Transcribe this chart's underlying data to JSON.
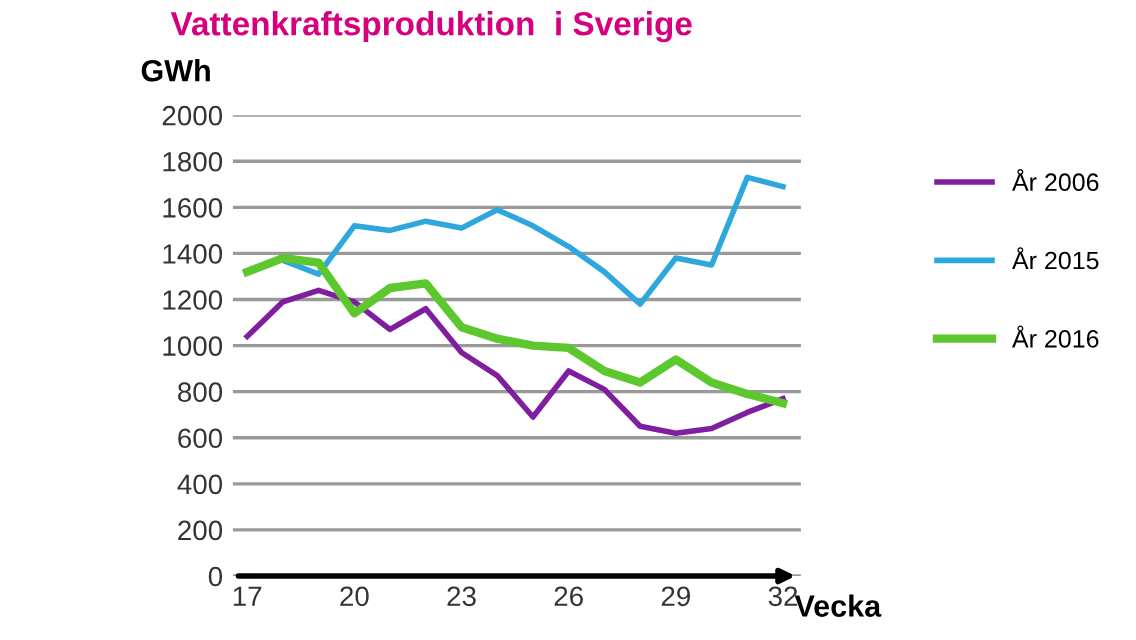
{
  "chart_data": {
    "type": "line",
    "title": "Vattenkraftsproduktion  i Sverige",
    "xlabel": "Vecka",
    "ylabel": "GWh",
    "x": [
      17,
      18,
      19,
      20,
      21,
      22,
      23,
      24,
      25,
      26,
      27,
      28,
      29,
      30,
      31,
      32
    ],
    "series": [
      {
        "name": "År 2006",
        "color": "#7f1fa0",
        "values": [
          1040,
          1190,
          1240,
          1190,
          1070,
          1160,
          970,
          870,
          690,
          890,
          810,
          650,
          620,
          640,
          710,
          770
        ]
      },
      {
        "name": "År 2015",
        "color": "#2ea8dc",
        "values": [
          null,
          1370,
          1310,
          1520,
          1500,
          1540,
          1510,
          1590,
          1520,
          1430,
          1320,
          1180,
          1380,
          1350,
          1730,
          1690
        ]
      },
      {
        "name": "År 2016",
        "color": "#5cc82e",
        "values": [
          1320,
          1380,
          1360,
          1140,
          1250,
          1270,
          1080,
          1030,
          1000,
          990,
          890,
          840,
          940,
          840,
          790,
          750
        ]
      }
    ],
    "xlim": [
      16.6,
      32.5
    ],
    "ylim": [
      0,
      2000
    ],
    "xticks": [
      17,
      20,
      23,
      26,
      29,
      32
    ],
    "yticks": [
      0,
      200,
      400,
      600,
      800,
      1000,
      1200,
      1400,
      1600,
      1800,
      2000
    ],
    "grid": "y",
    "legend": "right",
    "marker": "none",
    "line_style": "solid"
  }
}
